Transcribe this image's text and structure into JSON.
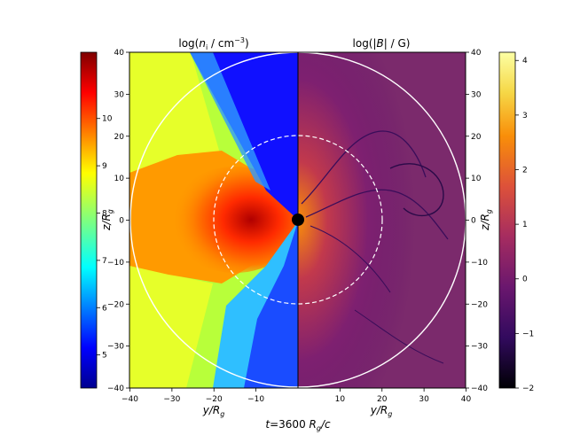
{
  "chart_data": {
    "type": "heatmap",
    "time_label": {
      "prefix": "t",
      "value": "=3600 ",
      "unit": "R",
      "unit_sub": "g",
      "unit_suffix": "/c"
    },
    "panels": [
      {
        "name": "density",
        "title": {
          "prefix": "log(",
          "symbol": "n",
          "sub": "i",
          "suffix": " / cm",
          "sup": "−3",
          "close": ")"
        },
        "xlabel": {
          "main": "y/R",
          "sub": "g"
        },
        "ylabel": {
          "main": "z/R",
          "sub": "g"
        },
        "xlim": [
          -40,
          0
        ],
        "ylim": [
          -40,
          40
        ],
        "x_ticks": [
          "−40",
          "−30",
          "−20",
          "−10"
        ],
        "x_tick_values": [
          -40,
          -30,
          -20,
          -10
        ],
        "y_ticks": [
          "40",
          "30",
          "20",
          "10",
          "0",
          "−10",
          "−20",
          "−30",
          "−40"
        ],
        "y_tick_values": [
          40,
          30,
          20,
          10,
          0,
          -10,
          -20,
          -30,
          -40
        ],
        "colorbar": {
          "side": "left",
          "range": [
            4.3,
            11.4
          ],
          "ticks": [
            "10",
            "9",
            "8",
            "7",
            "6",
            "5"
          ],
          "tick_values": [
            10,
            9,
            8,
            7,
            6,
            5
          ],
          "colormap": "jet"
        }
      },
      {
        "name": "magnetic-field",
        "title": {
          "prefix": "log(|",
          "symbol": "B",
          "suffix": "| / G)"
        },
        "xlabel": {
          "main": "y/R",
          "sub": "g"
        },
        "ylabel": {
          "main": "z/R",
          "sub": "g"
        },
        "xlim": [
          0,
          40
        ],
        "ylim": [
          -40,
          40
        ],
        "x_ticks": [
          "10",
          "20",
          "30",
          "40"
        ],
        "x_tick_values": [
          10,
          20,
          30,
          40
        ],
        "y_ticks": [
          "40",
          "30",
          "20",
          "10",
          "0",
          "−10",
          "−20",
          "−30",
          "−40"
        ],
        "y_tick_values": [
          40,
          30,
          20,
          10,
          0,
          -10,
          -20,
          -30,
          -40
        ],
        "colorbar": {
          "side": "right",
          "range": [
            -2,
            4.15
          ],
          "ticks": [
            "4",
            "3",
            "2",
            "1",
            "0",
            "−1",
            "−2"
          ],
          "tick_values": [
            4,
            3,
            2,
            1,
            0,
            -1,
            -2
          ],
          "colormap": "inferno"
        }
      }
    ],
    "overlays": {
      "outer_circle_radius": 40,
      "inner_dashed_circle_radius": 20,
      "black_hole": true,
      "grid": false
    }
  }
}
